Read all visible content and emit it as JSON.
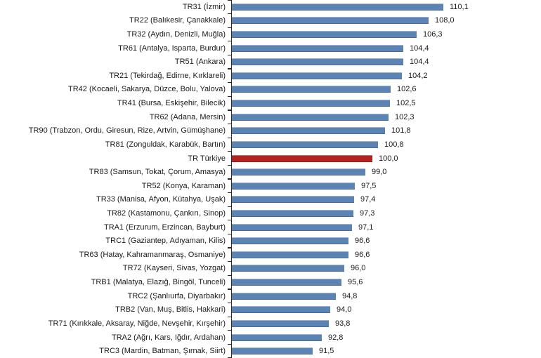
{
  "chart_data": {
    "type": "bar",
    "orientation": "horizontal",
    "title": "",
    "xlabel": "",
    "ylabel": "",
    "grid": false,
    "legend": false,
    "value_labels_shown": true,
    "decimal_separator": ",",
    "xlim": [
      80,
      124
    ],
    "highlight_category": "TR Türkiye",
    "colors": {
      "bar": "#5b84b5",
      "highlight_bar": "#b22422",
      "axis": "#2b2b2b",
      "text": "#1a1a1a",
      "background": "#ffffff"
    },
    "categories": [
      "TR31 (İzmir)",
      "TR22 (Balıkesir, Çanakkale)",
      "TR32 (Aydın, Denizli, Muğla)",
      "TR61 (Antalya, Isparta, Burdur)",
      "TR51 (Ankara)",
      "TR21 (Tekirdağ, Edirne, Kırklareli)",
      "TR42 (Kocaeli, Sakarya, Düzce, Bolu, Yalova)",
      "TR41 (Bursa, Eskişehir, Bilecik)",
      "TR62 (Adana, Mersin)",
      "TR90 (Trabzon, Ordu, Giresun, Rize, Artvin, Gümüşhane)",
      "TR81 (Zonguldak, Karabük, Bartın)",
      "TR Türkiye",
      "TR83 (Samsun, Tokat, Çorum, Amasya)",
      "TR52 (Konya, Karaman)",
      "TR33 (Manisa, Afyon, Kütahya, Uşak)",
      "TR82 (Kastamonu, Çankırı, Sinop)",
      "TRA1 (Erzurum, Erzincan, Bayburt)",
      "TRC1 (Gaziantep, Adıyaman, Kilis)",
      "TR63 (Hatay, Kahramanmaraş, Osmaniye)",
      "TR72 (Kayseri, Sivas, Yozgat)",
      "TRB1 (Malatya, Elazığ, Bingöl, Tunceli)",
      "TRC2 (Şanlıurfa, Diyarbakır)",
      "TRB2 (Van, Muş, Bitlis, Hakkari)",
      "TR71 (Kırıkkale, Aksaray, Niğde, Nevşehir, Kırşehir)",
      "TRA2 (Ağrı, Kars, Iğdır, Ardahan)",
      "TRC3 (Mardin, Batman, Şırnak, Siirt)"
    ],
    "values": [
      110.1,
      108.0,
      106.3,
      104.4,
      104.4,
      104.2,
      102.6,
      102.5,
      102.3,
      101.8,
      100.8,
      100.0,
      99.0,
      97.5,
      97.4,
      97.3,
      97.1,
      96.6,
      96.6,
      96.0,
      95.6,
      94.8,
      94.0,
      93.8,
      92.8,
      91.5
    ],
    "values_display": [
      "110,1",
      "108,0",
      "106,3",
      "104,4",
      "104,4",
      "104,2",
      "102,6",
      "102,5",
      "102,3",
      "101,8",
      "100,8",
      "100,0",
      "99,0",
      "97,5",
      "97,4",
      "97,3",
      "97,1",
      "96,6",
      "96,6",
      "96,0",
      "95,6",
      "94,8",
      "94,0",
      "93,8",
      "92,8",
      "91,5"
    ]
  }
}
